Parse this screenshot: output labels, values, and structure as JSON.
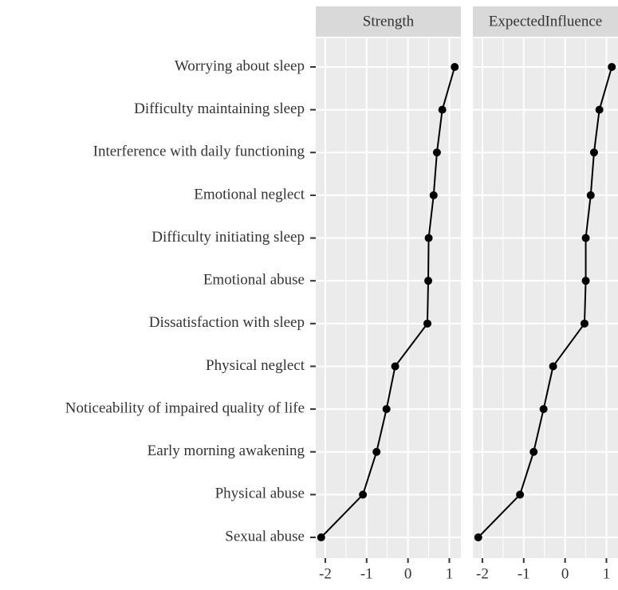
{
  "chart_data": [
    {
      "type": "line",
      "title": "Strength",
      "categories": [
        "Worrying about sleep",
        "Difficulty maintaining sleep",
        "Interference with daily functioning",
        "Emotional neglect",
        "Difficulty initiating sleep",
        "Emotional abuse",
        "Dissatisfaction with sleep",
        "Physical neglect",
        "Noticeability of impaired quality of life",
        "Early morning awakening",
        "Physical abuse",
        "Sexual abuse"
      ],
      "values": [
        1.13,
        0.83,
        0.7,
        0.62,
        0.5,
        0.49,
        0.47,
        -0.31,
        -0.52,
        -0.76,
        -1.09,
        -2.1
      ],
      "color": "#000000",
      "xlim": [
        -2.23,
        1.28
      ],
      "xticks": [
        -2,
        -1,
        0,
        1
      ],
      "grid": true
    },
    {
      "type": "line",
      "title": "ExpectedInfluence",
      "values": [
        1.13,
        0.83,
        0.7,
        0.62,
        0.5,
        0.5,
        0.47,
        -0.29,
        -0.52,
        -0.76,
        -1.09,
        -2.1
      ],
      "color": "#000000",
      "xlim": [
        -2.23,
        1.28
      ],
      "xticks": [
        -2,
        -1,
        0,
        1
      ],
      "grid": true
    }
  ]
}
